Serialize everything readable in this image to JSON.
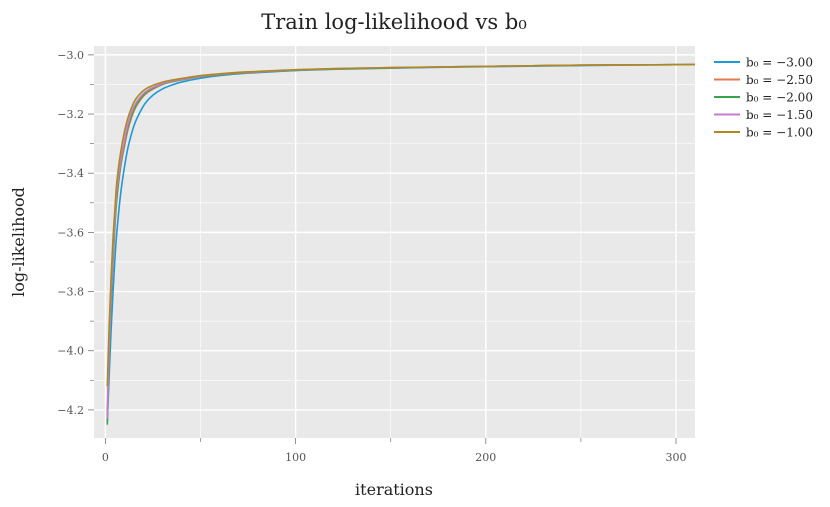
{
  "chart_data": {
    "type": "line",
    "title": "Train log-likelihood vs b₀",
    "xlabel": "iterations",
    "ylabel": "log-likelihood",
    "xlim": [
      -6,
      310
    ],
    "ylim": [
      -4.295,
      -2.97
    ],
    "x_ticks": [
      0,
      100,
      200,
      300
    ],
    "x_minor_ticks": [
      50,
      150,
      250
    ],
    "y_ticks": [
      -3.0,
      -3.2,
      -3.4,
      -3.6,
      -3.8,
      -4.0,
      -4.2
    ],
    "y_minor_ticks": [
      -3.1,
      -3.3,
      -3.5,
      -3.7,
      -3.9,
      -4.1
    ],
    "x_tick_labels": [
      "0",
      "100",
      "200",
      "300"
    ],
    "y_tick_labels": [
      "−3.0",
      "−3.2",
      "−3.4",
      "−3.6",
      "−3.8",
      "−4.0",
      "−4.2"
    ],
    "grid": true,
    "legend_position": "outside-right-top",
    "background": "#e9e9e9",
    "x": [
      1,
      2,
      3,
      4,
      5,
      6,
      8,
      10,
      12,
      15,
      18,
      21,
      25,
      30,
      35,
      40,
      50,
      60,
      70,
      80,
      100,
      125,
      150,
      175,
      200,
      250,
      300,
      310
    ],
    "series": [
      {
        "name": "b₀ = −3.00",
        "color": "#1a9bdb",
        "values": [
          -4.24,
          -4.08,
          -3.93,
          -3.8,
          -3.69,
          -3.6,
          -3.47,
          -3.38,
          -3.31,
          -3.24,
          -3.196,
          -3.163,
          -3.136,
          -3.115,
          -3.102,
          -3.092,
          -3.079,
          -3.07,
          -3.064,
          -3.06,
          -3.053,
          -3.048,
          -3.045,
          -3.042,
          -3.04,
          -3.036,
          -3.033,
          -3.032
        ]
      },
      {
        "name": "b₀ = −2.50",
        "color": "#e07a4f",
        "values": [
          -4.2,
          -4.0,
          -3.83,
          -3.7,
          -3.58,
          -3.49,
          -3.38,
          -3.31,
          -3.25,
          -3.19,
          -3.156,
          -3.133,
          -3.116,
          -3.1,
          -3.091,
          -3.085,
          -3.074,
          -3.067,
          -3.062,
          -3.058,
          -3.052,
          -3.047,
          -3.044,
          -3.041,
          -3.039,
          -3.035,
          -3.033,
          -3.032
        ]
      },
      {
        "name": "b₀ = −2.00",
        "color": "#3aa54a",
        "values": [
          -4.25,
          -4.0,
          -3.82,
          -3.68,
          -3.57,
          -3.48,
          -3.37,
          -3.3,
          -3.24,
          -3.185,
          -3.152,
          -3.13,
          -3.113,
          -3.099,
          -3.09,
          -3.084,
          -3.073,
          -3.066,
          -3.061,
          -3.057,
          -3.052,
          -3.047,
          -3.044,
          -3.041,
          -3.039,
          -3.035,
          -3.033,
          -3.032
        ]
      },
      {
        "name": "b₀ = −1.50",
        "color": "#c77bd0",
        "values": [
          -4.23,
          -3.98,
          -3.8,
          -3.66,
          -3.55,
          -3.46,
          -3.36,
          -3.29,
          -3.23,
          -3.175,
          -3.145,
          -3.125,
          -3.11,
          -3.097,
          -3.088,
          -3.083,
          -3.072,
          -3.065,
          -3.06,
          -3.057,
          -3.051,
          -3.046,
          -3.043,
          -3.041,
          -3.039,
          -3.035,
          -3.033,
          -3.032
        ]
      },
      {
        "name": "b₀ = −1.00",
        "color": "#ad8a20",
        "values": [
          -4.12,
          -3.91,
          -3.75,
          -3.62,
          -3.52,
          -3.43,
          -3.33,
          -3.26,
          -3.21,
          -3.16,
          -3.133,
          -3.116,
          -3.103,
          -3.092,
          -3.085,
          -3.08,
          -3.07,
          -3.064,
          -3.059,
          -3.056,
          -3.05,
          -3.046,
          -3.043,
          -3.041,
          -3.039,
          -3.035,
          -3.033,
          -3.032
        ]
      }
    ]
  }
}
